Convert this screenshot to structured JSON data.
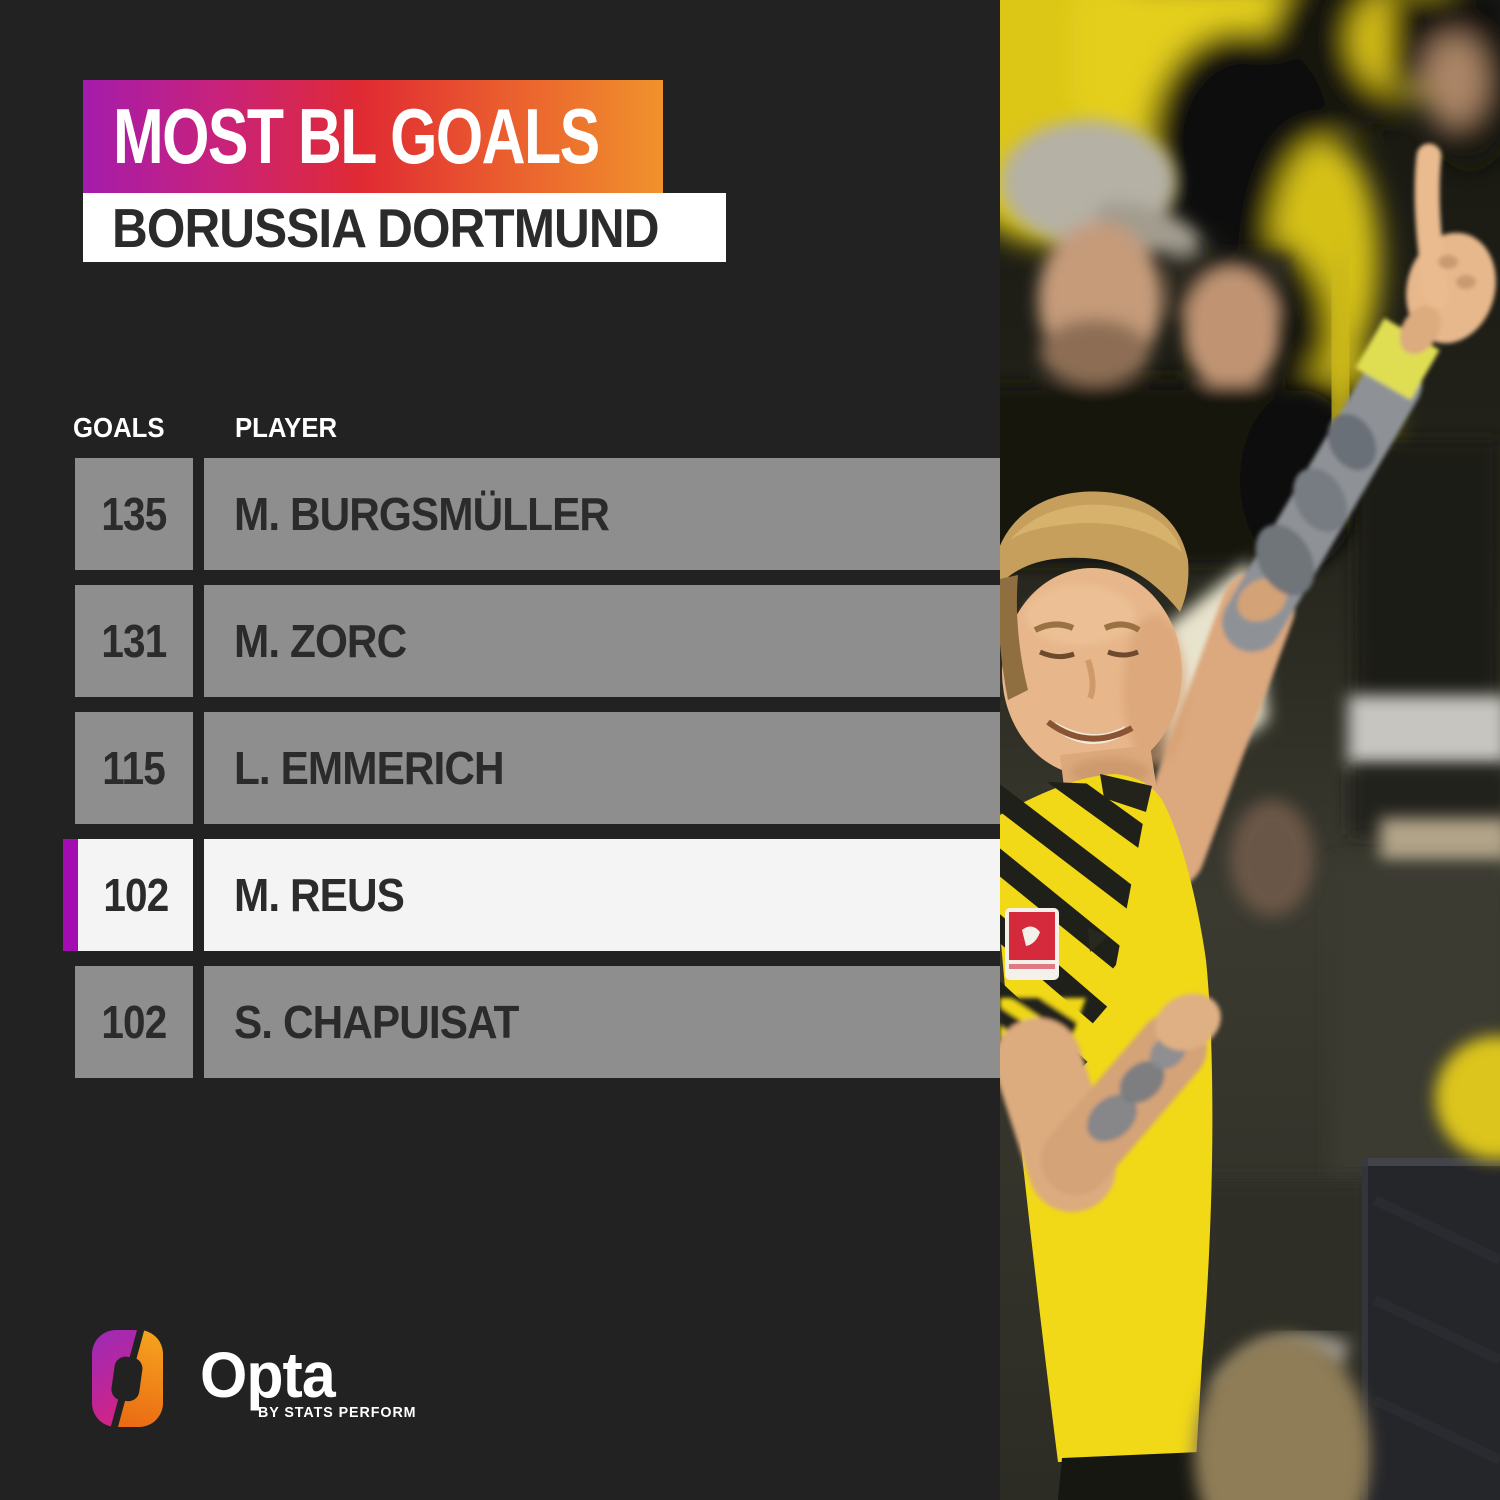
{
  "header": {
    "title": "MOST BL GOALS",
    "subtitle": "BORUSSIA DORTMUND"
  },
  "table": {
    "columns": [
      "GOALS",
      "PLAYER"
    ],
    "rows": [
      {
        "goals": "135",
        "player": "M. BURGSMÜLLER",
        "highlighted": false
      },
      {
        "goals": "131",
        "player": "M. ZORC",
        "highlighted": false
      },
      {
        "goals": "115",
        "player": "L. EMMERICH",
        "highlighted": false
      },
      {
        "goals": "102",
        "player": "M. REUS",
        "highlighted": true
      },
      {
        "goals": "102",
        "player": "S. CHAPUISAT",
        "highlighted": false
      }
    ]
  },
  "footer": {
    "brand": "Opta",
    "brand_sub": "BY STATS PERFORM"
  },
  "colors": {
    "background": "#232222",
    "gradient_left": "#a41cac",
    "gradient_mid": "#e02a33",
    "gradient_right": "#f0922c",
    "subtitle_bg": "#ffffff",
    "subtitle_text": "#2b2b2b",
    "row_gray": "#8e8e8e",
    "row_text": "#2b2b2b",
    "highlight_bg": "#f4f4f4",
    "highlight_accent": "#a30cb0",
    "column_header_text": "#ffffff"
  },
  "chart_data": {
    "type": "table",
    "title": "MOST BL GOALS",
    "subtitle": "BORUSSIA DORTMUND",
    "columns": [
      "GOALS",
      "PLAYER"
    ],
    "rows": [
      [
        135,
        "M. BURGSMÜLLER"
      ],
      [
        131,
        "M. ZORC"
      ],
      [
        115,
        "L. EMMERICH"
      ],
      [
        102,
        "M. REUS"
      ],
      [
        102,
        "S. CHAPUISAT"
      ]
    ],
    "highlighted_player": "M. REUS",
    "layout": "ranked list, highlighted row marked with purple accent bar"
  }
}
